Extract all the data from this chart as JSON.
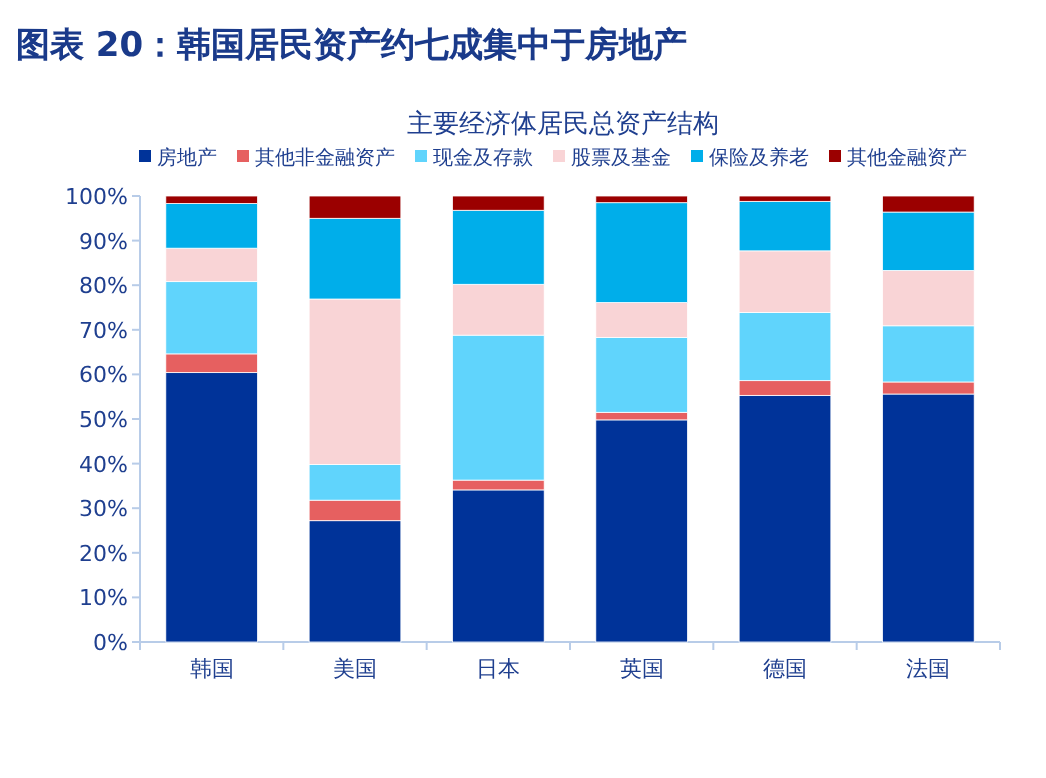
{
  "chart_data": {
    "type": "bar",
    "stacked": true,
    "title": "图表 20：韩国居民资产约七成集中于房地产",
    "subtitle": "主要经济体居民总资产结构",
    "categories": [
      "韩国",
      "美国",
      "日本",
      "英国",
      "德国",
      "法国"
    ],
    "series": [
      {
        "name": "房地产",
        "color": "#003399",
        "values": [
          60.4,
          27.2,
          34.1,
          49.8,
          55.3,
          55.6
        ]
      },
      {
        "name": "其他非金融资产",
        "color": "#e66060",
        "values": [
          4.2,
          4.6,
          2.2,
          1.7,
          3.3,
          2.7
        ]
      },
      {
        "name": "现金及存款",
        "color": "#60d4fc",
        "values": [
          16.2,
          8.0,
          32.5,
          16.8,
          15.3,
          12.6
        ]
      },
      {
        "name": "股票及基金",
        "color": "#f9d4d6",
        "values": [
          7.5,
          37.1,
          11.4,
          7.8,
          13.8,
          12.4
        ]
      },
      {
        "name": "保险及养老",
        "color": "#00aeea",
        "values": [
          10.0,
          18.1,
          16.6,
          22.4,
          11.1,
          13.1
        ]
      },
      {
        "name": "其他金融资产",
        "color": "#9b0000",
        "values": [
          1.7,
          5.0,
          3.2,
          1.5,
          1.2,
          3.6
        ]
      }
    ],
    "ylim": [
      0,
      100
    ],
    "yticks": [
      {
        "value": 0,
        "label": "0%"
      },
      {
        "value": 10,
        "label": "10%"
      },
      {
        "value": 20,
        "label": "20%"
      },
      {
        "value": 30,
        "label": "30%"
      },
      {
        "value": 40,
        "label": "40%"
      },
      {
        "value": 50,
        "label": "50%"
      },
      {
        "value": 60,
        "label": "60%"
      },
      {
        "value": 70,
        "label": "70%"
      },
      {
        "value": 80,
        "label": "80%"
      },
      {
        "value": 90,
        "label": "90%"
      },
      {
        "value": 100,
        "label": "100%"
      }
    ],
    "legend": "top"
  }
}
